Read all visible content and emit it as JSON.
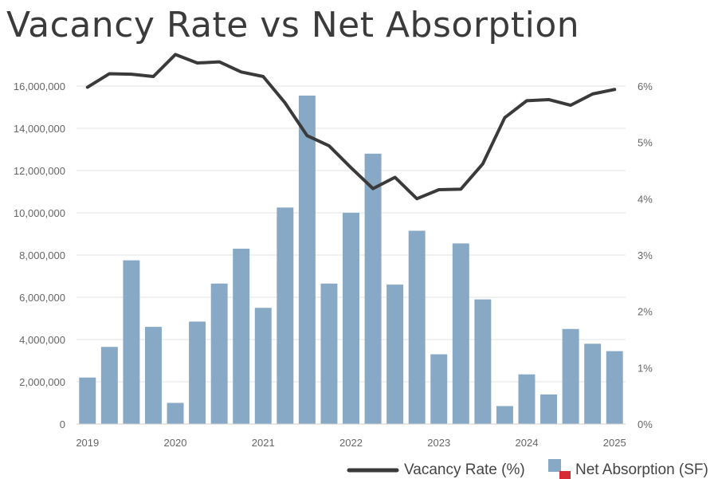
{
  "chart_data": {
    "type": "bar",
    "title": "Vacancy Rate vs Net Absorption",
    "x": [
      "2019 Q1",
      "2019 Q2",
      "2019 Q3",
      "2019 Q4",
      "2020 Q1",
      "2020 Q2",
      "2020 Q3",
      "2020 Q4",
      "2021 Q1",
      "2021 Q2",
      "2021 Q3",
      "2021 Q4",
      "2022 Q1",
      "2022 Q2",
      "2022 Q3",
      "2022 Q4",
      "2023 Q1",
      "2023 Q2",
      "2023 Q3",
      "2023 Q4",
      "2024 Q1",
      "2024 Q2",
      "2024 Q3",
      "2024 Q4",
      "2025 Q1"
    ],
    "x_tick_labels": [
      "2019",
      "2020",
      "2021",
      "2022",
      "2023",
      "2024",
      "2025"
    ],
    "y_left": {
      "ylim": [
        0,
        16000000
      ],
      "tick_labels": [
        "0",
        "2,000,000",
        "4,000,000",
        "6,000,000",
        "8,000,000",
        "10,000,000",
        "12,000,000",
        "14,000,000",
        "16,000,000"
      ]
    },
    "y_right": {
      "ylim": [
        0,
        6
      ],
      "tick_labels": [
        "0%",
        "1%",
        "2%",
        "3%",
        "4%",
        "5%",
        "6%"
      ]
    },
    "series": [
      {
        "name": "Net Absorption (SF)",
        "type": "bar",
        "axis": "left",
        "color": "#87a9c6",
        "values": [
          2200000,
          3650000,
          7750000,
          4600000,
          1000000,
          4850000,
          6650000,
          8300000,
          5500000,
          10250000,
          15550000,
          6650000,
          10000000,
          12800000,
          6600000,
          9150000,
          3300000,
          8550000,
          5900000,
          850000,
          2350000,
          1400000,
          4500000,
          3800000,
          3450000
        ]
      },
      {
        "name": "Vacancy Rate (%)",
        "type": "line",
        "axis": "right",
        "color": "#3a3a3a",
        "values": [
          5.98,
          6.22,
          6.21,
          6.17,
          6.56,
          6.41,
          6.43,
          6.25,
          6.17,
          5.7,
          5.12,
          4.94,
          4.55,
          4.18,
          4.38,
          4.0,
          4.16,
          4.17,
          4.62,
          5.44,
          5.74,
          5.76,
          5.66,
          5.86,
          5.94
        ]
      }
    ],
    "legend": {
      "position": "bottom-right",
      "line_label": "Vacancy Rate (%)",
      "bar_label": "Net Absorption (SF)",
      "bar_swatch_color": "#87a9c6",
      "bar_swatch_accent": "#d62b35"
    },
    "grid": true
  }
}
